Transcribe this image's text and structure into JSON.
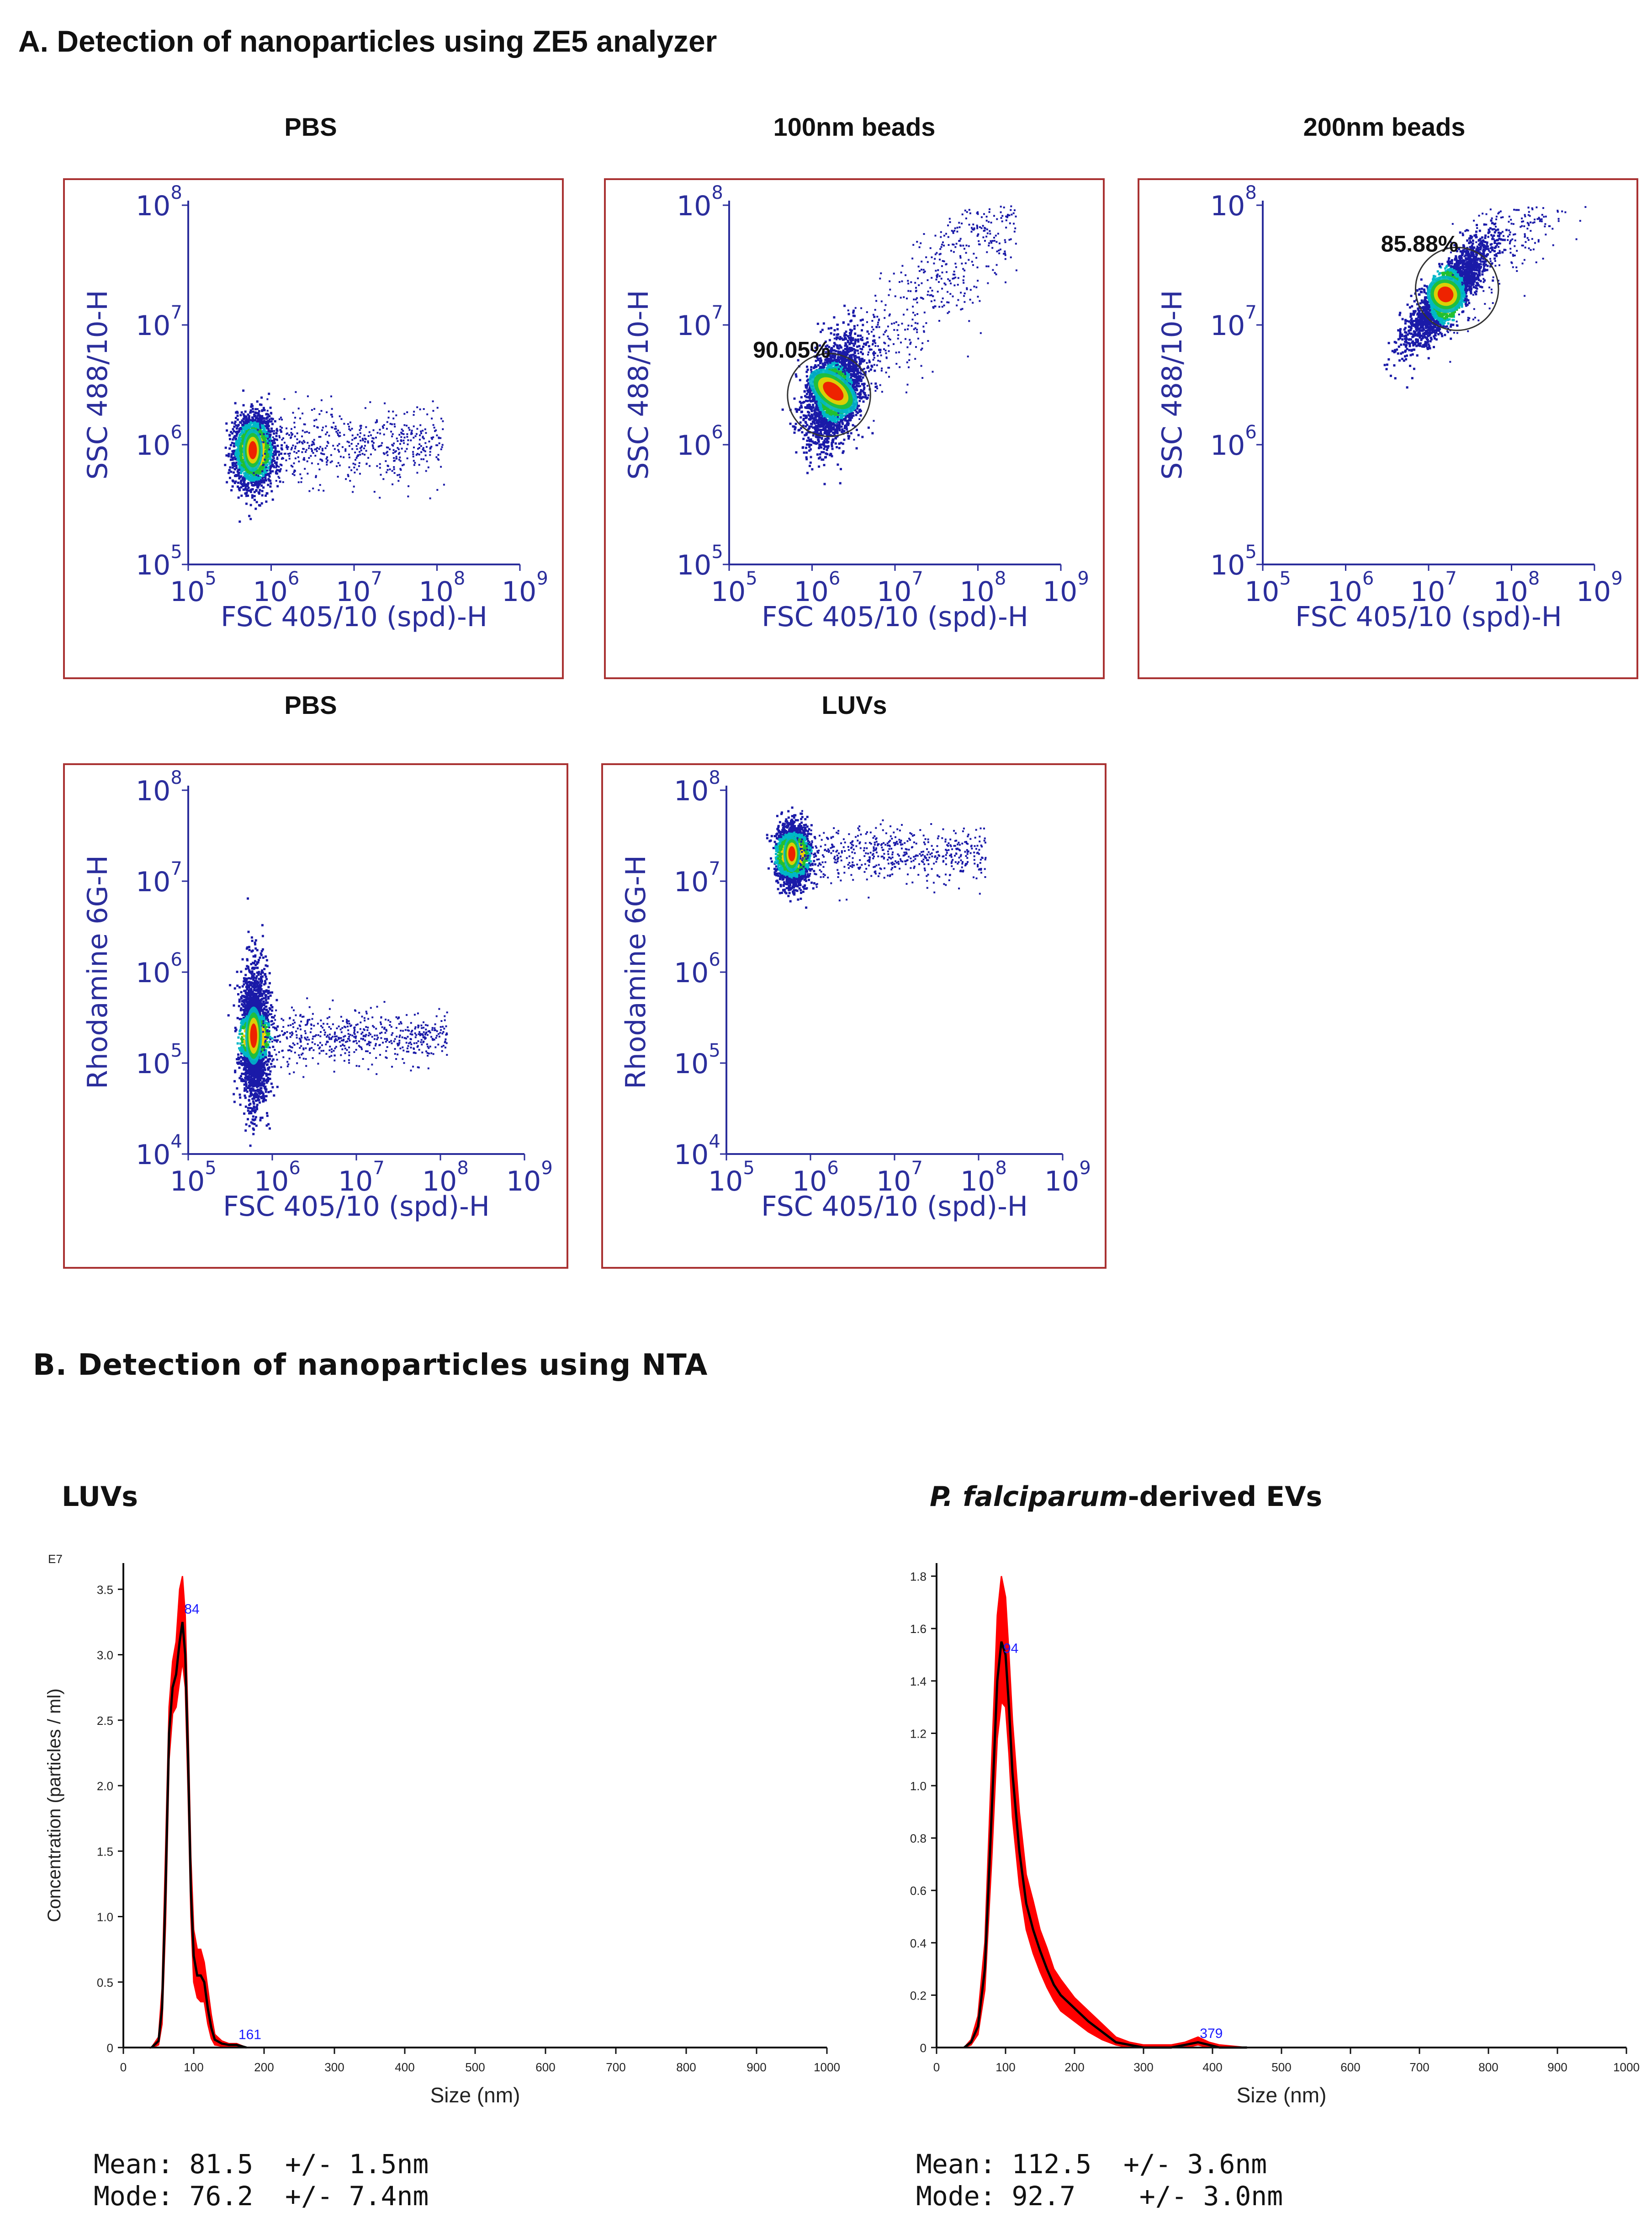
{
  "section_a": {
    "heading": "A. Detection of nanoparticles using ZE5 analyzer"
  },
  "section_b": {
    "heading": "B. Detection of nanoparticles using NTA"
  },
  "colors": {
    "panel_border": "#a93232",
    "axis_text": "#2b2e9c",
    "density_low": "#1a1aa8",
    "density_mid": "#00b7c8",
    "density_midhigh": "#22c030",
    "density_high": "#f0d000",
    "density_peak": "#f01000",
    "nta_fill": "#ff0000",
    "nta_line": "#000000",
    "nta_label": "#1a1aff"
  },
  "chart_data": [
    {
      "id": "fc1",
      "type": "scatter",
      "title": "PBS",
      "xlabel": "FSC 405/10 (spd)-H",
      "ylabel": "SSC 488/10-H",
      "x_scale": "log",
      "y_scale": "log",
      "xlim": [
        100000,
        1000000000
      ],
      "ylim": [
        100000,
        100000000
      ],
      "x_ticks": [
        "10^5",
        "10^6",
        "10^7",
        "10^8",
        "10^9"
      ],
      "y_ticks": [
        "10^5",
        "10^6",
        "10^7",
        "10^8"
      ],
      "population_center": [
        600000,
        900000
      ],
      "gate": null
    },
    {
      "id": "fc2",
      "type": "scatter",
      "title": "100nm beads",
      "xlabel": "FSC 405/10 (spd)-H",
      "ylabel": "SSC 488/10-H",
      "x_scale": "log",
      "y_scale": "log",
      "xlim": [
        100000,
        1000000000
      ],
      "ylim": [
        100000,
        100000000
      ],
      "x_ticks": [
        "10^5",
        "10^6",
        "10^7",
        "10^8",
        "10^9"
      ],
      "y_ticks": [
        "10^5",
        "10^6",
        "10^7",
        "10^8"
      ],
      "population_center": [
        1800000,
        2800000
      ],
      "gate": {
        "label": "90.05%",
        "center": [
          1600000,
          2600000
        ]
      }
    },
    {
      "id": "fc3",
      "type": "scatter",
      "title": "200nm beads",
      "xlabel": "FSC 405/10 (spd)-H",
      "ylabel": "SSC 488/10-H",
      "x_scale": "log",
      "y_scale": "log",
      "xlim": [
        100000,
        1000000000
      ],
      "ylim": [
        100000,
        100000000
      ],
      "x_ticks": [
        "10^5",
        "10^6",
        "10^7",
        "10^8",
        "10^9"
      ],
      "y_ticks": [
        "10^5",
        "10^6",
        "10^7",
        "10^8"
      ],
      "population_center": [
        16000000,
        18000000
      ],
      "gate": {
        "label": "85.88%",
        "center": [
          22000000,
          20000000
        ]
      }
    },
    {
      "id": "fc4",
      "type": "scatter",
      "title": "PBS",
      "xlabel": "FSC 405/10 (spd)-H",
      "ylabel": "Rhodamine 6G-H",
      "x_scale": "log",
      "y_scale": "log",
      "xlim": [
        100000,
        1000000000
      ],
      "ylim": [
        10000,
        100000000
      ],
      "x_ticks": [
        "10^5",
        "10^6",
        "10^7",
        "10^8",
        "10^9"
      ],
      "y_ticks": [
        "10^4",
        "10^5",
        "10^6",
        "10^7",
        "10^8"
      ],
      "population_center": [
        600000,
        200000
      ],
      "gate": null
    },
    {
      "id": "fc5",
      "type": "scatter",
      "title": "LUVs",
      "xlabel": "FSC 405/10 (spd)-H",
      "ylabel": "Rhodamine 6G-H",
      "x_scale": "log",
      "y_scale": "log",
      "xlim": [
        100000,
        1000000000
      ],
      "ylim": [
        10000,
        100000000
      ],
      "x_ticks": [
        "10^5",
        "10^6",
        "10^7",
        "10^8",
        "10^9"
      ],
      "y_ticks": [
        "10^4",
        "10^5",
        "10^6",
        "10^7",
        "10^8"
      ],
      "population_center": [
        600000,
        20000000
      ],
      "gate": null
    },
    {
      "id": "nta1",
      "type": "area",
      "title": "LUVs",
      "xlabel": "Size (nm)",
      "ylabel": "Concentration (particles / ml)",
      "y_multiplier": "E7",
      "xlim": [
        0,
        1000
      ],
      "ylim": [
        0,
        3.7
      ],
      "x_ticks": [
        "0",
        "100",
        "200",
        "300",
        "400",
        "500",
        "600",
        "700",
        "800",
        "900",
        "1000"
      ],
      "y_ticks": [
        "0",
        "0.5",
        "1.0",
        "1.5",
        "2.0",
        "2.5",
        "3.0",
        "3.5"
      ],
      "x": [
        40,
        50,
        55,
        60,
        65,
        70,
        75,
        80,
        84,
        88,
        92,
        96,
        100,
        105,
        110,
        115,
        120,
        125,
        130,
        140,
        150,
        161,
        175
      ],
      "mean_curve": [
        0,
        0.05,
        0.3,
        1.2,
        2.4,
        2.75,
        2.85,
        3.1,
        3.25,
        3.0,
        2.2,
        1.2,
        0.7,
        0.55,
        0.55,
        0.5,
        0.3,
        0.15,
        0.06,
        0.03,
        0.02,
        0.02,
        0
      ],
      "error_upper": [
        0,
        0.08,
        0.45,
        1.5,
        2.6,
        2.95,
        3.1,
        3.5,
        3.6,
        3.3,
        2.45,
        1.45,
        0.9,
        0.75,
        0.75,
        0.65,
        0.45,
        0.25,
        0.1,
        0.05,
        0.03,
        0.03,
        0
      ],
      "error_lower": [
        0,
        0.02,
        0.18,
        0.95,
        2.2,
        2.55,
        2.6,
        2.8,
        2.95,
        2.75,
        1.95,
        1.0,
        0.5,
        0.38,
        0.35,
        0.35,
        0.18,
        0.07,
        0.02,
        0.01,
        0,
        0,
        0
      ],
      "peak_labels": [
        {
          "x": 84,
          "y": 3.3,
          "text": "84"
        },
        {
          "x": 161,
          "y": 0.05,
          "text": "161"
        }
      ],
      "stats": {
        "mean": "Mean: 81.5  +/- 1.5nm",
        "mode": "Mode: 76.2  +/- 7.4nm"
      }
    },
    {
      "id": "nta2",
      "type": "area",
      "title_prefix": "P. falciparum",
      "title_suffix": "-derived EVs",
      "xlabel": "Size (nm)",
      "ylabel": "",
      "xlim": [
        0,
        1000
      ],
      "ylim": [
        0,
        1.85
      ],
      "x_ticks": [
        "0",
        "100",
        "200",
        "300",
        "400",
        "500",
        "600",
        "700",
        "800",
        "900",
        "1000"
      ],
      "y_ticks": [
        "0",
        "0.2",
        "0.4",
        "0.6",
        "0.8",
        "1.0",
        "1.2",
        "1.4",
        "1.6",
        "1.8"
      ],
      "x": [
        40,
        50,
        60,
        70,
        80,
        88,
        94,
        100,
        105,
        110,
        120,
        130,
        140,
        150,
        160,
        170,
        180,
        200,
        220,
        240,
        260,
        280,
        300,
        340,
        360,
        379,
        395,
        410,
        450
      ],
      "mean_curve": [
        0,
        0.02,
        0.08,
        0.3,
        0.9,
        1.4,
        1.55,
        1.5,
        1.3,
        1.05,
        0.75,
        0.55,
        0.45,
        0.37,
        0.3,
        0.24,
        0.2,
        0.15,
        0.1,
        0.06,
        0.02,
        0.01,
        0,
        0,
        0.01,
        0.02,
        0.01,
        0,
        0
      ],
      "error_upper": [
        0,
        0.03,
        0.12,
        0.4,
        1.1,
        1.65,
        1.8,
        1.72,
        1.5,
        1.25,
        0.9,
        0.66,
        0.56,
        0.45,
        0.38,
        0.3,
        0.26,
        0.19,
        0.14,
        0.09,
        0.04,
        0.02,
        0.01,
        0.01,
        0.02,
        0.04,
        0.02,
        0.01,
        0
      ],
      "error_lower": [
        0,
        0.01,
        0.05,
        0.22,
        0.72,
        1.18,
        1.32,
        1.3,
        1.12,
        0.88,
        0.62,
        0.45,
        0.36,
        0.29,
        0.23,
        0.18,
        0.14,
        0.1,
        0.06,
        0.03,
        0.01,
        0,
        0,
        0,
        0,
        0.01,
        0,
        0,
        0
      ],
      "peak_labels": [
        {
          "x": 94,
          "y": 1.5,
          "text": "94"
        },
        {
          "x": 379,
          "y": 0.03,
          "text": "379"
        }
      ],
      "stats": {
        "mean": "Mean: 112.5  +/- 3.6nm",
        "mode": "Mode: 92.7    +/- 3.0nm"
      }
    }
  ]
}
